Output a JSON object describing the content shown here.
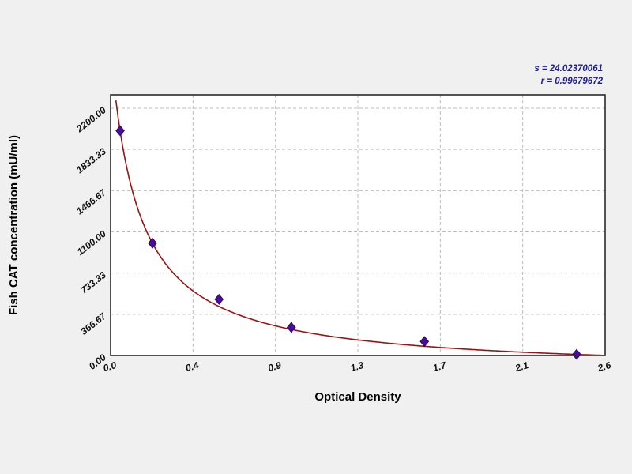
{
  "chart_data": {
    "type": "scatter",
    "title": "",
    "xlabel": "Optical Density",
    "ylabel": "Fish CAT concentration (mU/ml)",
    "x_tick_labels": [
      "0.0",
      "0.4",
      "0.9",
      "1.3",
      "1.7",
      "2.1",
      "2.6"
    ],
    "y_tick_labels": [
      "2200.00",
      "1833.33",
      "1466.67",
      "1100.00",
      "733.33",
      "366.67",
      "0.00"
    ],
    "xlim": [
      0,
      2.6
    ],
    "ylim": [
      0,
      2200
    ],
    "grid": true,
    "legend": "none",
    "points": [
      {
        "x": 0.05,
        "y": 2000
      },
      {
        "x": 0.22,
        "y": 1000
      },
      {
        "x": 0.57,
        "y": 500
      },
      {
        "x": 0.95,
        "y": 250
      },
      {
        "x": 1.65,
        "y": 125
      },
      {
        "x": 2.45,
        "y": 10
      }
    ],
    "fit_curve": {
      "model": "y = a/(x+b)+c",
      "a": 421.5,
      "b": 0.146,
      "c": -152.7
    },
    "annotations": {
      "s": "s = 24.02370061",
      "r": "r = 0.99679672"
    },
    "colors": {
      "figure_background": "#f0f0f0",
      "plot_background": "#ffffff",
      "grid": "#bcbcbc",
      "border": "#2b2b2b",
      "curve": "#9b1212",
      "point_fill": "#4a0d99",
      "point_stroke": "#2a0763",
      "stats_text": "#1e1e8c",
      "axis_text": "#000000"
    }
  }
}
